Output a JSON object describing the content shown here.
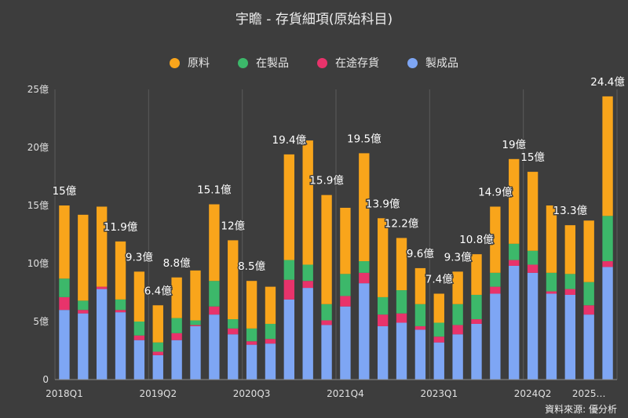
{
  "chart_data": {
    "type": "bar",
    "stacked": true,
    "title": "宇瞻 - 存貨細項(原始科目)",
    "source": "資料來源: 優分析",
    "ylim": [
      0,
      25
    ],
    "y_ticks": [
      {
        "value": 0,
        "label": "0"
      },
      {
        "value": 5,
        "label": "5億"
      },
      {
        "value": 10,
        "label": "10億"
      },
      {
        "value": 15,
        "label": "15億"
      },
      {
        "value": 20,
        "label": "20億"
      },
      {
        "value": 25,
        "label": "25億"
      }
    ],
    "x_tick_labels": [
      {
        "index": 0,
        "label": "2018Q1"
      },
      {
        "index": 5,
        "label": "2019Q2"
      },
      {
        "index": 10,
        "label": "2020Q3"
      },
      {
        "index": 15,
        "label": "2021Q4"
      },
      {
        "index": 20,
        "label": "2023Q1"
      },
      {
        "index": 25,
        "label": "2024Q2"
      },
      {
        "index": 28,
        "label": "2025…"
      }
    ],
    "grid": "vertical",
    "legend_position": "top",
    "series": [
      {
        "name": "製成品",
        "color": "#7ea6f4",
        "values": [
          6.0,
          5.7,
          7.8,
          5.8,
          3.4,
          2.1,
          3.4,
          4.6,
          5.6,
          3.9,
          3.0,
          3.1,
          6.9,
          7.9,
          4.7,
          6.3,
          8.3,
          4.6,
          4.9,
          4.3,
          3.2,
          3.9,
          4.8,
          7.4,
          9.8,
          9.2,
          7.4,
          7.3,
          5.6,
          9.7
        ]
      },
      {
        "name": "在途存貨",
        "color": "#e8336b",
        "values": [
          1.1,
          0.3,
          0.2,
          0.2,
          0.4,
          0.3,
          0.6,
          0.1,
          0.7,
          0.5,
          0.3,
          0.4,
          1.7,
          0.6,
          0.4,
          0.9,
          0.9,
          1.0,
          0.8,
          0.3,
          0.5,
          0.8,
          0.4,
          0.6,
          0.5,
          0.7,
          0.2,
          0.5,
          0.8,
          0.5
        ]
      },
      {
        "name": "在製品",
        "color": "#3cb86a",
        "values": [
          1.6,
          0.8,
          0.0,
          0.9,
          1.2,
          0.8,
          1.3,
          0.4,
          2.2,
          0.8,
          1.1,
          1.3,
          1.7,
          1.4,
          1.4,
          1.9,
          1.0,
          1.5,
          2.0,
          1.9,
          1.2,
          1.8,
          2.1,
          1.2,
          1.4,
          1.2,
          1.6,
          1.3,
          2.0,
          3.9
        ]
      },
      {
        "name": "原料",
        "color": "#f9a51b",
        "values": [
          6.3,
          7.4,
          6.9,
          5.0,
          4.3,
          3.2,
          3.5,
          4.3,
          6.6,
          6.8,
          4.1,
          3.2,
          9.1,
          10.7,
          9.4,
          5.7,
          9.3,
          6.8,
          4.5,
          3.1,
          2.5,
          2.8,
          3.5,
          5.7,
          7.3,
          6.8,
          5.8,
          4.2,
          5.3,
          10.3
        ]
      }
    ],
    "legend_order": [
      "原料",
      "在製品",
      "在途存貨",
      "製成品"
    ],
    "data_labels": [
      {
        "index": 0,
        "text": "15億"
      },
      {
        "index": 3,
        "text": "11.9億"
      },
      {
        "index": 4,
        "text": "9.3億"
      },
      {
        "index": 5,
        "text": "6.4億"
      },
      {
        "index": 6,
        "text": "8.8億"
      },
      {
        "index": 8,
        "text": "15.1億"
      },
      {
        "index": 9,
        "text": "12億"
      },
      {
        "index": 10,
        "text": "8.5億"
      },
      {
        "index": 12,
        "text": "19.4億"
      },
      {
        "index": 14,
        "text": "15.9億"
      },
      {
        "index": 16,
        "text": "19.5億"
      },
      {
        "index": 17,
        "text": "13.9億"
      },
      {
        "index": 18,
        "text": "12.2億"
      },
      {
        "index": 19,
        "text": "9.6億"
      },
      {
        "index": 20,
        "text": "7.4億"
      },
      {
        "index": 21,
        "text": "9.3億"
      },
      {
        "index": 22,
        "text": "10.8億"
      },
      {
        "index": 23,
        "text": "14.9億"
      },
      {
        "index": 24,
        "text": "19億"
      },
      {
        "index": 25,
        "text": "15億"
      },
      {
        "index": 27,
        "text": "13.3億"
      },
      {
        "index": 29,
        "text": "24.4億"
      }
    ]
  }
}
